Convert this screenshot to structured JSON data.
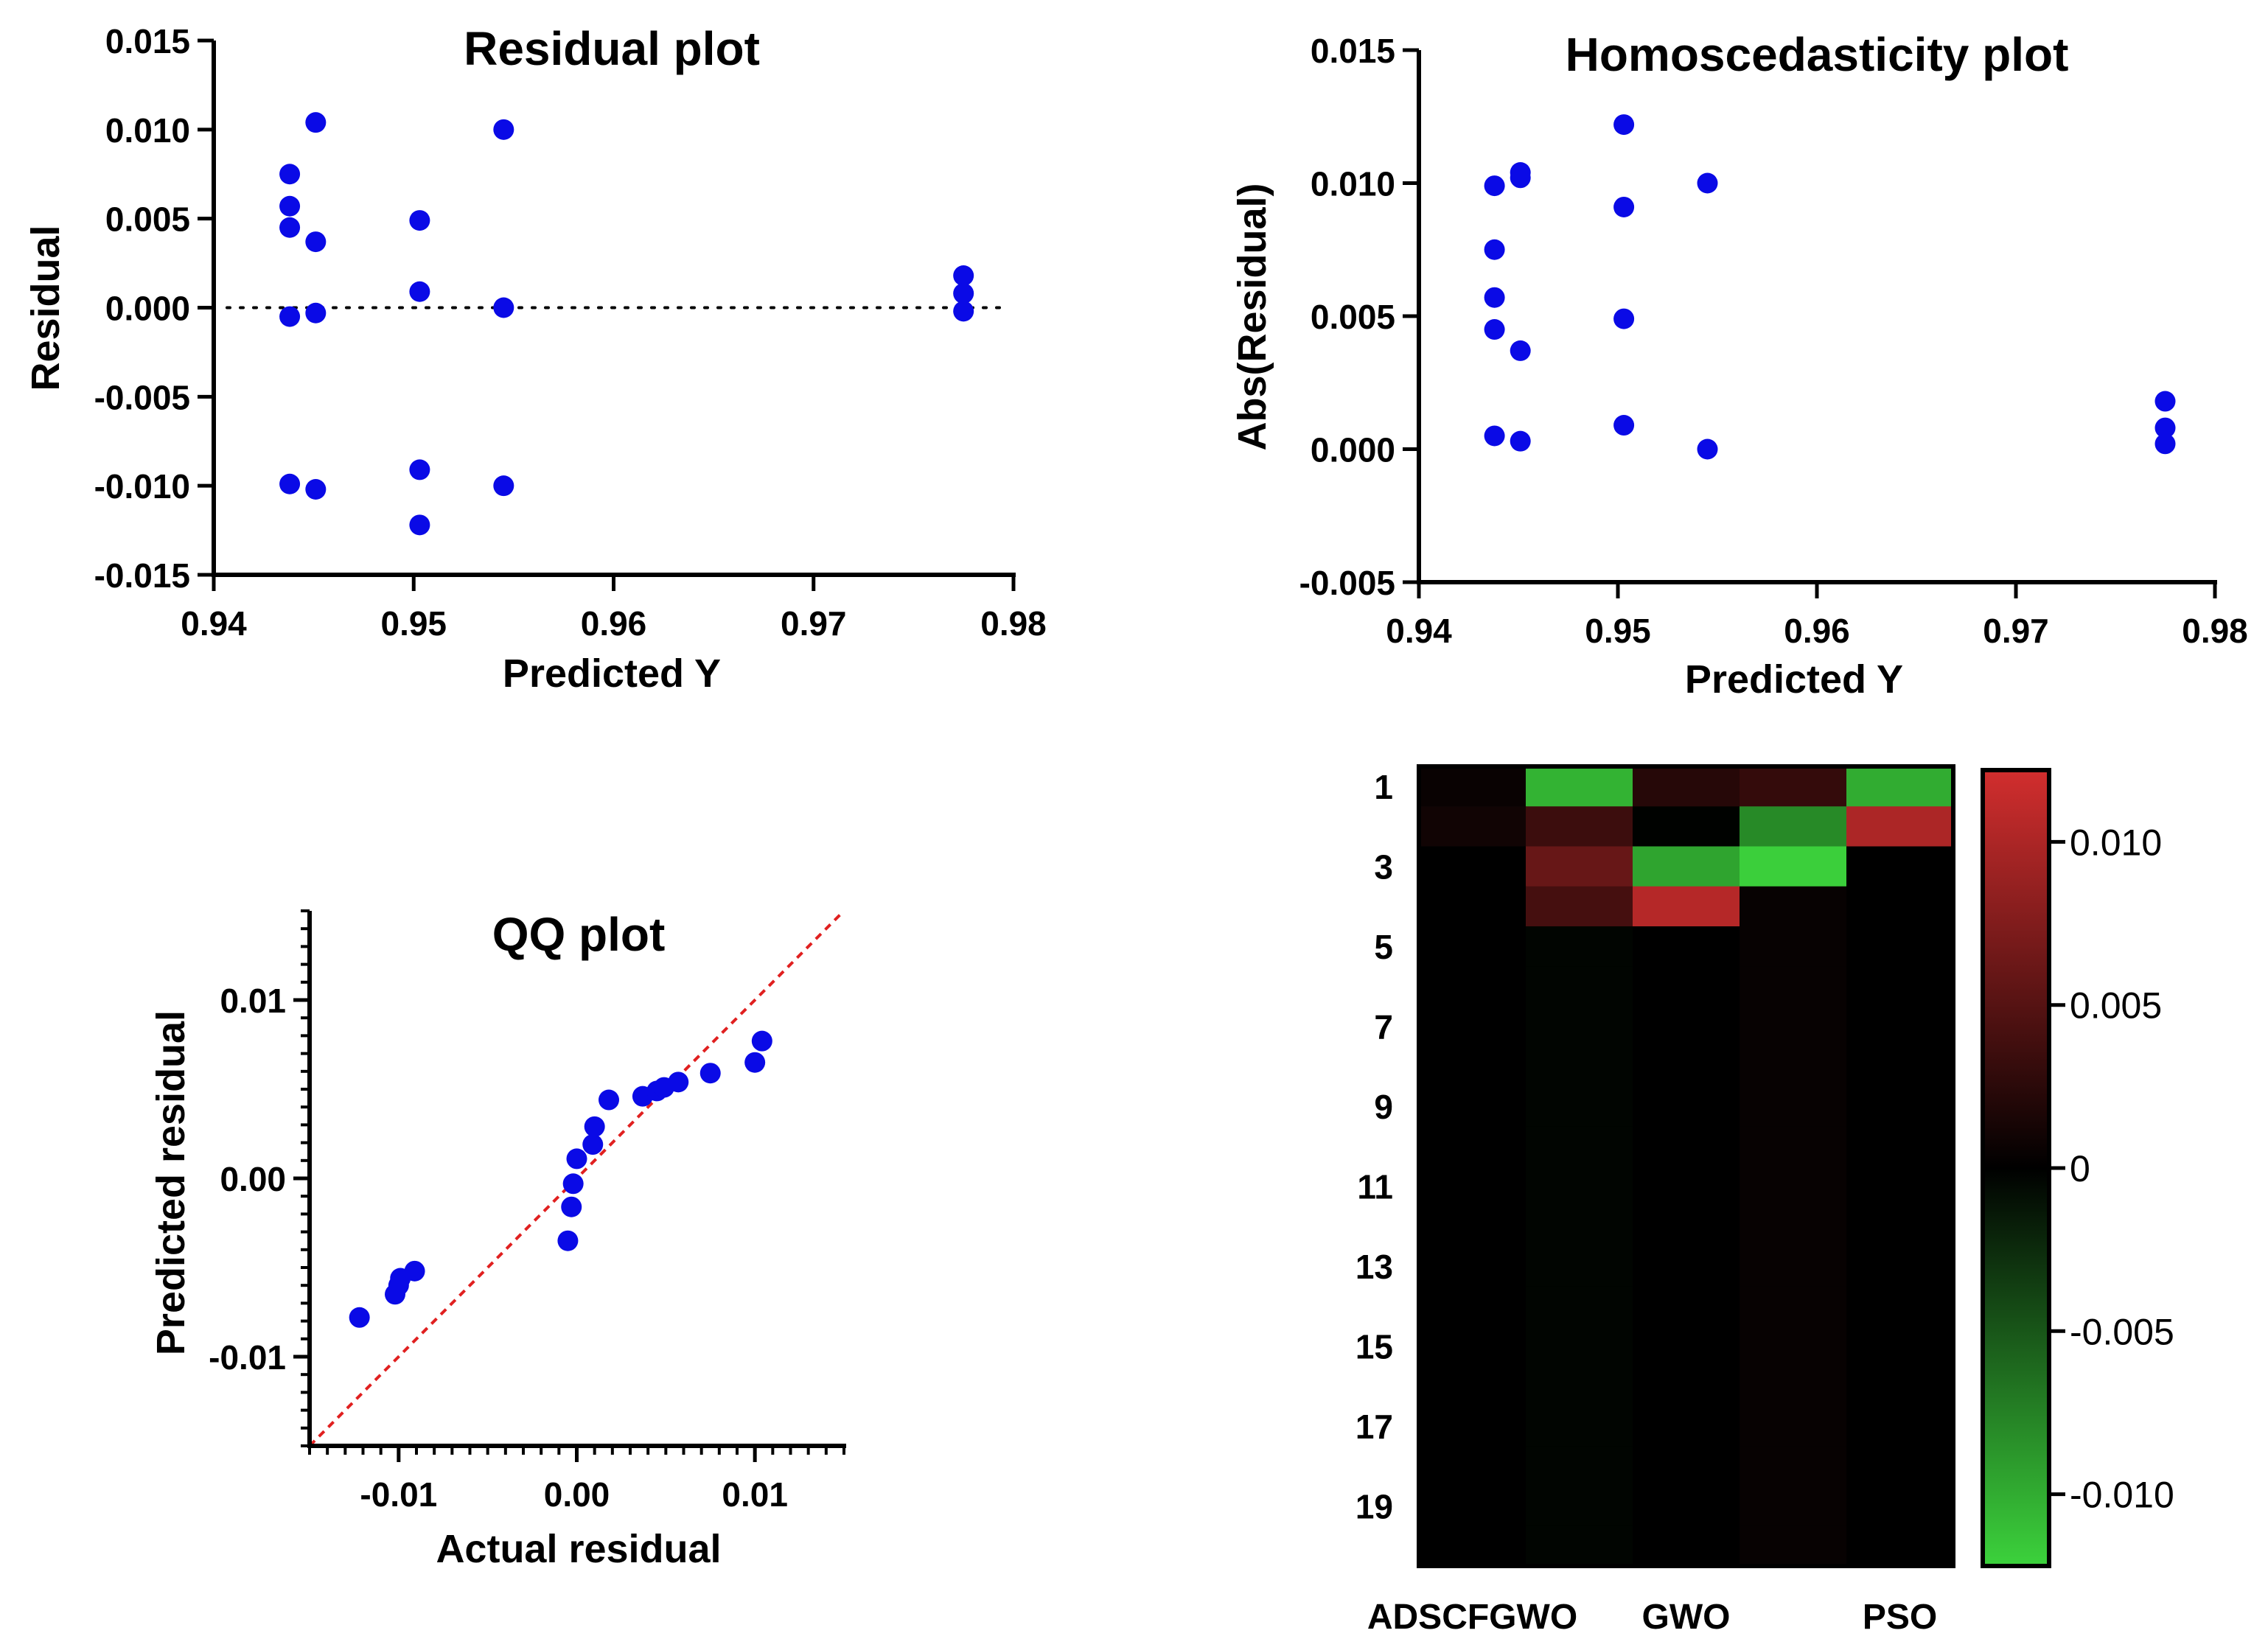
{
  "colors": {
    "point": "#0a0ae6",
    "axis": "#000000",
    "identity_line": "#e02020",
    "heat_pos": "#d22e2e",
    "heat_zero": "#000000",
    "heat_neg": "#3cd23c"
  },
  "chart_data": [
    {
      "id": "residual",
      "type": "scatter",
      "title": "Residual plot",
      "xlabel": "Predicted Y",
      "ylabel": "Residual",
      "xlim": [
        0.94,
        0.98
      ],
      "ylim": [
        -0.015,
        0.015
      ],
      "xticks": [
        "0.94",
        "0.95",
        "0.96",
        "0.97",
        "0.98"
      ],
      "yticks": [
        "-0.015",
        "-0.010",
        "-0.005",
        "0.000",
        "0.005",
        "0.010",
        "0.015"
      ],
      "reference_line": "dotted horizontal at 0",
      "points": [
        [
          0.9438,
          0.0075
        ],
        [
          0.9438,
          0.0057
        ],
        [
          0.9438,
          0.0045
        ],
        [
          0.9438,
          -0.0005
        ],
        [
          0.9438,
          -0.0099
        ],
        [
          0.9451,
          0.0104
        ],
        [
          0.9451,
          0.0037
        ],
        [
          0.9451,
          -0.0003
        ],
        [
          0.9451,
          -0.0102
        ],
        [
          0.9503,
          0.0049
        ],
        [
          0.9503,
          0.0009
        ],
        [
          0.9503,
          -0.0091
        ],
        [
          0.9503,
          -0.0122
        ],
        [
          0.9545,
          0.01
        ],
        [
          0.9545,
          0.0
        ],
        [
          0.9545,
          -0.01
        ],
        [
          0.9775,
          0.0018
        ],
        [
          0.9775,
          0.0008
        ],
        [
          0.9775,
          -0.0002
        ]
      ]
    },
    {
      "id": "homoscedasticity",
      "type": "scatter",
      "title": "Homoscedasticity plot",
      "xlabel": "Predicted Y",
      "ylabel": "Abs(Residual)",
      "xlim": [
        0.94,
        0.98
      ],
      "ylim": [
        -0.005,
        0.015
      ],
      "xticks": [
        "0.94",
        "0.95",
        "0.96",
        "0.97",
        "0.98"
      ],
      "yticks": [
        "-0.005",
        "0.000",
        "0.005",
        "0.010",
        "0.015"
      ],
      "points": [
        [
          0.9438,
          0.0099
        ],
        [
          0.9438,
          0.0075
        ],
        [
          0.9438,
          0.0057
        ],
        [
          0.9438,
          0.0045
        ],
        [
          0.9438,
          0.0005
        ],
        [
          0.9451,
          0.0102
        ],
        [
          0.9451,
          0.0104
        ],
        [
          0.9451,
          0.0037
        ],
        [
          0.9451,
          0.0003
        ],
        [
          0.9503,
          0.0122
        ],
        [
          0.9503,
          0.0091
        ],
        [
          0.9503,
          0.0049
        ],
        [
          0.9503,
          0.0009
        ],
        [
          0.9545,
          0.01
        ],
        [
          0.9545,
          0.0
        ],
        [
          0.9775,
          0.0018
        ],
        [
          0.9775,
          0.0008
        ],
        [
          0.9775,
          0.0002
        ]
      ]
    },
    {
      "id": "qq",
      "type": "scatter",
      "title": "QQ plot",
      "xlabel": "Actual residual",
      "ylabel": "Predicted residual",
      "xlim": [
        -0.015,
        0.015
      ],
      "ylim": [
        -0.015,
        0.015
      ],
      "xticks": [
        "-0.01",
        "0.00",
        "0.01"
      ],
      "yticks": [
        "-0.01",
        "0.00",
        "0.01"
      ],
      "reference_line": "dashed identity line y = x",
      "points": [
        [
          -0.0122,
          -0.0078
        ],
        [
          -0.0102,
          -0.0065
        ],
        [
          -0.01,
          -0.006
        ],
        [
          -0.0099,
          -0.0056
        ],
        [
          -0.0091,
          -0.0052
        ],
        [
          -0.0005,
          -0.0035
        ],
        [
          -0.0003,
          -0.0016
        ],
        [
          -0.0002,
          -0.0003
        ],
        [
          0.0,
          0.0011
        ],
        [
          0.0009,
          0.0019
        ],
        [
          0.001,
          0.0029
        ],
        [
          0.0018,
          0.0044
        ],
        [
          0.0037,
          0.0046
        ],
        [
          0.0045,
          0.0049
        ],
        [
          0.0049,
          0.0051
        ],
        [
          0.0057,
          0.0054
        ],
        [
          0.0075,
          0.0059
        ],
        [
          0.01,
          0.0065
        ],
        [
          0.0104,
          0.0077
        ]
      ]
    },
    {
      "id": "heatmap",
      "type": "heatmap",
      "columns": [
        "ADSCFGWO",
        "GWO",
        "PSO"
      ],
      "column_count": 5,
      "column_label_positions": [
        1,
        3,
        5
      ],
      "row_count": 20,
      "row_labels": [
        "1",
        "3",
        "5",
        "7",
        "9",
        "11",
        "13",
        "15",
        "17",
        "19"
      ],
      "colorbar": {
        "range": [
          -0.0122,
          0.0122
        ],
        "ticks": [
          "0.010",
          "0.005",
          "0",
          "-0.005",
          "-0.010"
        ],
        "tick_values": [
          0.01,
          0.005,
          0,
          -0.005,
          -0.01
        ]
      },
      "values": [
        [
          0.0005,
          -0.0104,
          0.0022,
          0.003,
          -0.01
        ],
        [
          0.001,
          0.0035,
          -0.0001,
          -0.008,
          0.01
        ],
        [
          0.0,
          0.006,
          -0.0095,
          -0.012,
          0.0
        ],
        [
          0.0,
          0.004,
          0.0105,
          0.0004,
          0.0
        ],
        [
          0.0,
          -0.0003,
          0.0,
          0.0004,
          0.0
        ],
        [
          0.0,
          -0.0003,
          0.0,
          0.0004,
          0.0
        ],
        [
          0.0,
          -0.0003,
          0.0,
          0.0004,
          0.0
        ],
        [
          0.0,
          -0.0003,
          0.0,
          0.0004,
          0.0
        ],
        [
          0.0,
          -0.0003,
          0.0,
          0.0004,
          0.0
        ],
        [
          0.0,
          -0.0003,
          0.0,
          0.0004,
          0.0
        ],
        [
          0.0,
          -0.0003,
          0.0,
          0.0004,
          0.0
        ],
        [
          0.0,
          -0.0003,
          0.0,
          0.0004,
          0.0
        ],
        [
          0.0,
          -0.0003,
          0.0,
          0.0004,
          0.0
        ],
        [
          0.0,
          -0.0003,
          0.0,
          0.0004,
          0.0
        ],
        [
          0.0,
          -0.0003,
          0.0,
          0.0004,
          0.0
        ],
        [
          0.0,
          -0.0003,
          0.0,
          0.0004,
          0.0
        ],
        [
          0.0,
          -0.0003,
          0.0,
          0.0004,
          0.0
        ],
        [
          0.0,
          -0.0003,
          0.0,
          0.0004,
          0.0
        ],
        [
          0.0,
          -0.0003,
          0.0,
          0.0004,
          0.0
        ],
        [
          0.0,
          -0.0003,
          0.0,
          0.0004,
          0.0
        ]
      ]
    }
  ]
}
